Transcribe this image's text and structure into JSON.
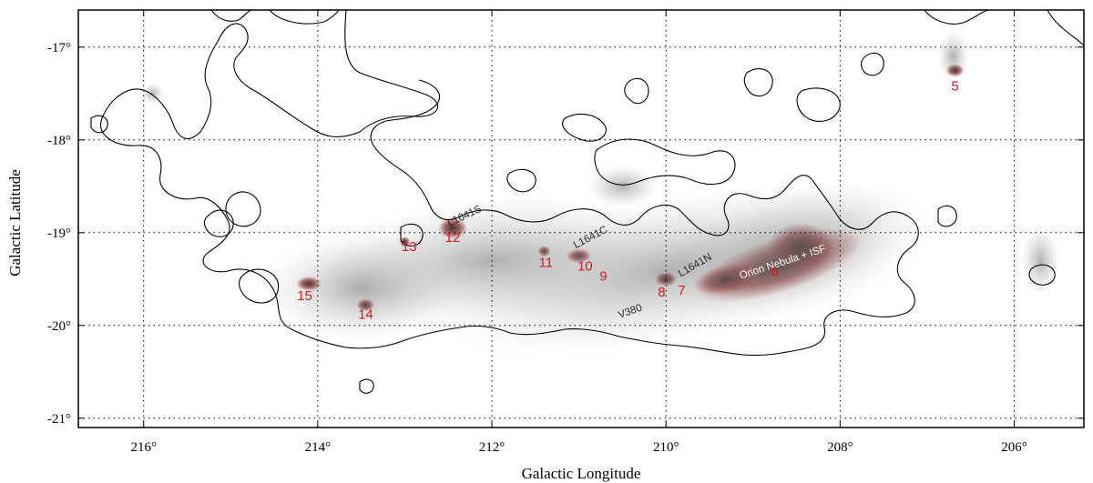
{
  "chart_data": {
    "type": "scatter",
    "title": "",
    "xlabel": "Galactic Longitude",
    "ylabel": "Galactic Latitude",
    "xlim": [
      216.75,
      205.2
    ],
    "ylim": [
      -21.1,
      -16.6
    ],
    "x_ticks": [
      216,
      214,
      212,
      210,
      208,
      206
    ],
    "y_ticks": [
      -17,
      -18,
      -19,
      -20,
      -21
    ],
    "x_tick_labels": [
      "216°",
      "214°",
      "212°",
      "210°",
      "208°",
      "206°"
    ],
    "y_tick_labels": [
      "-17°",
      "-18°",
      "-19°",
      "-20°",
      "-21°"
    ],
    "grid": true,
    "colors": {
      "region": "#d7191c",
      "contour": "#000000",
      "grid": "#000000"
    },
    "regions": [
      {
        "label": "5",
        "l": 206.68,
        "b": -17.42
      },
      {
        "label": "6",
        "l": 208.75,
        "b": -19.42
      },
      {
        "label": "7",
        "l": 209.82,
        "b": -19.62
      },
      {
        "label": "8",
        "l": 210.05,
        "b": -19.64
      },
      {
        "label": "9",
        "l": 210.72,
        "b": -19.47
      },
      {
        "label": "10",
        "l": 210.93,
        "b": -19.36
      },
      {
        "label": "11",
        "l": 211.38,
        "b": -19.32
      },
      {
        "label": "12",
        "l": 212.45,
        "b": -19.05
      },
      {
        "label": "13",
        "l": 212.95,
        "b": -19.15
      },
      {
        "label": "14",
        "l": 213.45,
        "b": -19.88
      },
      {
        "label": "15",
        "l": 214.15,
        "b": -19.68
      }
    ],
    "cloud_labels": [
      {
        "text": "L1641S",
        "l": 212.3,
        "b": -18.85,
        "rotate": -25
      },
      {
        "text": "L1641C",
        "l": 210.85,
        "b": -19.08,
        "rotate": -28
      },
      {
        "text": "L1641N",
        "l": 209.65,
        "b": -19.38,
        "rotate": -30
      },
      {
        "text": "V380",
        "l": 210.4,
        "b": -19.88,
        "rotate": -20
      },
      {
        "text": "Orion Nebula + ISF",
        "l": 208.65,
        "b": -19.35,
        "rotate": -18
      }
    ]
  }
}
